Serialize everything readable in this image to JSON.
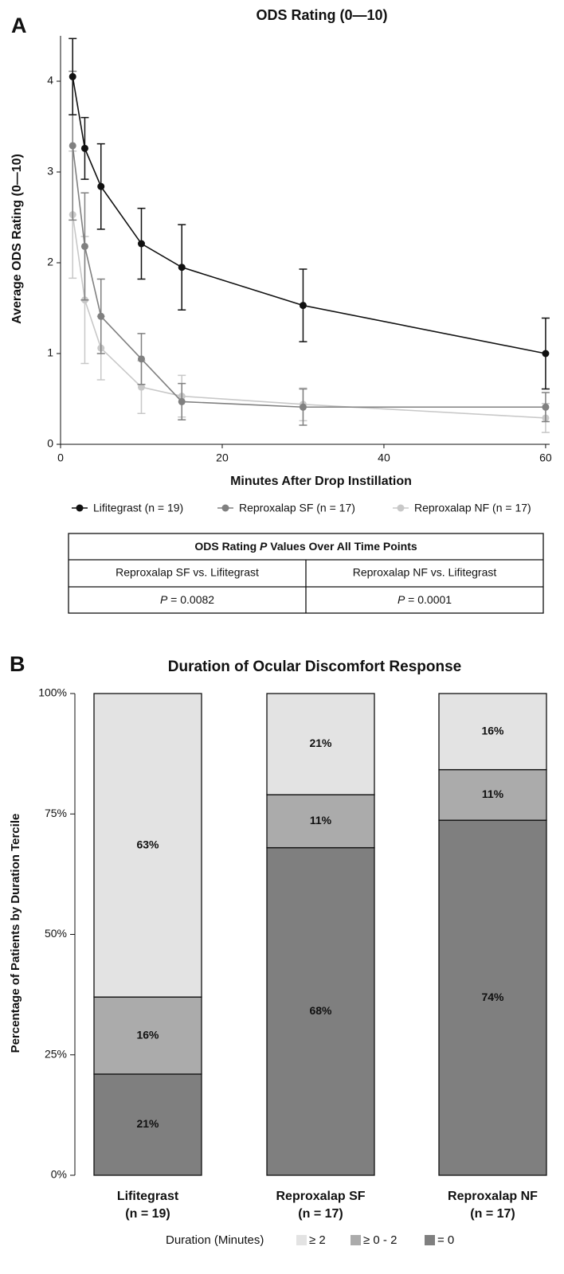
{
  "chart_data": [
    {
      "type": "line",
      "panel": "A",
      "title": "ODS Rating (0—10)",
      "x_label": "Minutes After Drop Instillation",
      "y_label": "Average ODS Rating (0—10)",
      "x": [
        1.5,
        3,
        5,
        10,
        15,
        30,
        60
      ],
      "xlim": [
        0,
        60.5
      ],
      "xticks": [
        0,
        20,
        40,
        60
      ],
      "ylim": [
        0,
        4.5
      ],
      "yticks": [
        0,
        1,
        2,
        3,
        4
      ],
      "series": [
        {
          "name": "Lifitegrast (n = 19)",
          "color": "#111111",
          "values": [
            4.05,
            3.26,
            2.84,
            2.21,
            1.95,
            1.53,
            1.0
          ],
          "errors": [
            0.42,
            0.34,
            0.47,
            0.39,
            0.47,
            0.4,
            0.39
          ]
        },
        {
          "name": "Reproxalap SF (n = 17)",
          "color": "#808080",
          "values": [
            3.29,
            2.18,
            1.41,
            0.94,
            0.47,
            0.41,
            0.41
          ],
          "errors": [
            0.82,
            0.59,
            0.41,
            0.28,
            0.2,
            0.2,
            0.16
          ]
        },
        {
          "name": "Reproxalap NF (n = 17)",
          "color": "#c8c8c8",
          "values": [
            2.53,
            1.59,
            1.06,
            0.63,
            0.53,
            0.44,
            0.29
          ],
          "errors": [
            0.7,
            0.7,
            0.35,
            0.29,
            0.23,
            0.18,
            0.16
          ]
        }
      ]
    },
    {
      "type": "stacked_bar",
      "panel": "B",
      "title": "Duration of Ocular Discomfort Response",
      "y_label": "Percentage of Patients by Duration Tercile",
      "legend_title": "Duration (Minutes)",
      "categories": [
        [
          "Lifitegrast",
          "(n = 19)"
        ],
        [
          "Reproxalap SF",
          "(n = 17)"
        ],
        [
          "Reproxalap NF",
          "(n = 17)"
        ]
      ],
      "ylim": [
        0,
        100
      ],
      "yticks": [
        {
          "value": 0,
          "label": "0%"
        },
        {
          "value": 25,
          "label": "25%"
        },
        {
          "value": 50,
          "label": "50%"
        },
        {
          "value": 75,
          "label": "75%"
        },
        {
          "value": 100,
          "label": "100%"
        }
      ],
      "series": [
        {
          "name": "= 0",
          "color": "#7f7f7f",
          "values": [
            21,
            68,
            73.7
          ],
          "value_labels": [
            "21%",
            "68%",
            "74%"
          ]
        },
        {
          "name": "≥ 0 - 2",
          "color": "#ababab",
          "values": [
            16,
            11,
            10.5
          ],
          "value_labels": [
            "16%",
            "11%",
            "11%"
          ]
        },
        {
          "name": "≥ 2",
          "color": "#e3e3e3",
          "values": [
            63,
            21,
            15.8
          ],
          "value_labels": [
            "63%",
            "21%",
            "16%"
          ]
        }
      ]
    }
  ],
  "table": {
    "title": [
      "ODS Rating ",
      "P",
      " Values Over All Time Points"
    ],
    "header": [
      "Reproxalap SF vs. Lifitegrast",
      "Reproxalap NF vs. Lifitegrast"
    ],
    "row": [
      [
        "P",
        " = 0.0082"
      ],
      [
        "P",
        " = 0.0001"
      ]
    ]
  }
}
